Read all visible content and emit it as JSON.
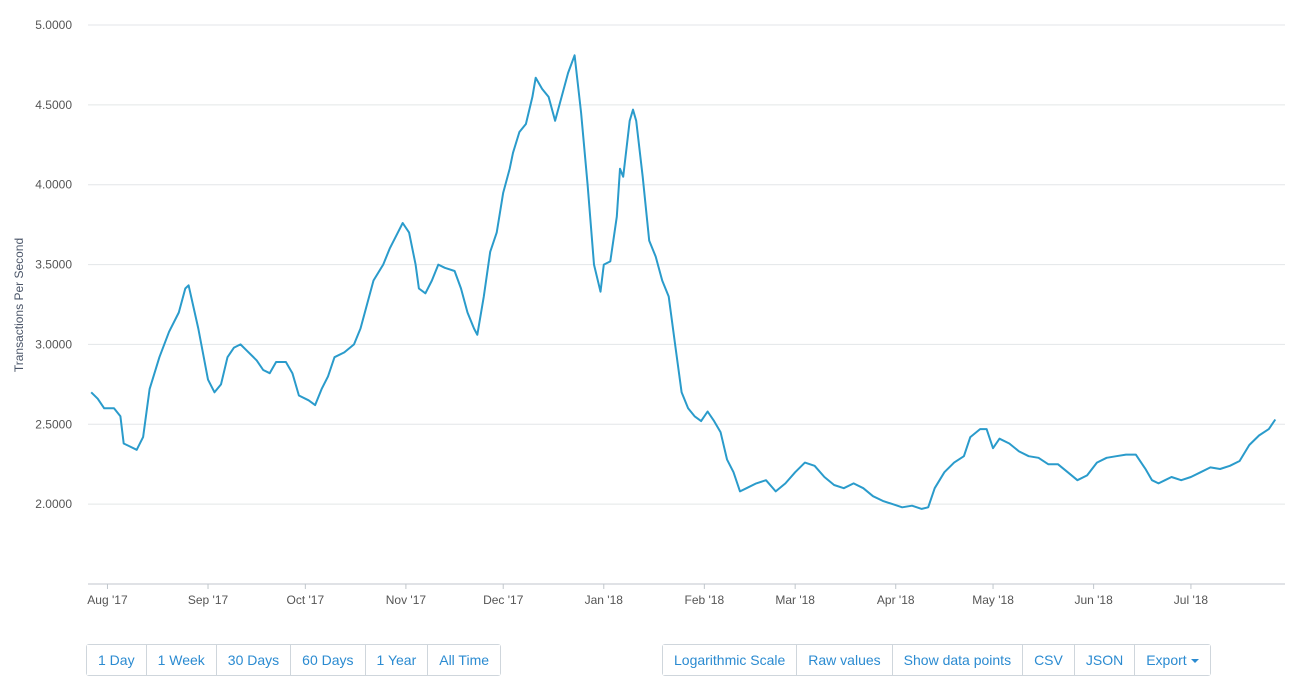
{
  "chart_data": {
    "type": "line",
    "ylabel": "Transactions Per Second",
    "ylim": [
      1.5,
      5.0
    ],
    "yticks": [
      "2.0000",
      "2.5000",
      "3.0000",
      "3.5000",
      "4.0000",
      "4.5000",
      "5.0000"
    ],
    "x_range": [
      "2017-07-26",
      "2018-07-30"
    ],
    "xticks": [
      {
        "label": "Aug '17",
        "date": "2017-08-01"
      },
      {
        "label": "Sep '17",
        "date": "2017-09-01"
      },
      {
        "label": "Oct '17",
        "date": "2017-10-01"
      },
      {
        "label": "Nov '17",
        "date": "2017-11-01"
      },
      {
        "label": "Dec '17",
        "date": "2017-12-01"
      },
      {
        "label": "Jan '18",
        "date": "2018-01-01"
      },
      {
        "label": "Feb '18",
        "date": "2018-02-01"
      },
      {
        "label": "Mar '18",
        "date": "2018-03-01"
      },
      {
        "label": "Apr '18",
        "date": "2018-04-01"
      },
      {
        "label": "May '18",
        "date": "2018-05-01"
      },
      {
        "label": "Jun '18",
        "date": "2018-06-01"
      },
      {
        "label": "Jul '18",
        "date": "2018-07-01"
      }
    ],
    "series_color": "#2a9bcb",
    "grid": true,
    "series": [
      {
        "points": [
          [
            "2017-07-27",
            2.7
          ],
          [
            "2017-07-29",
            2.66
          ],
          [
            "2017-07-31",
            2.6
          ],
          [
            "2017-08-03",
            2.6
          ],
          [
            "2017-08-05",
            2.55
          ],
          [
            "2017-08-06",
            2.38
          ],
          [
            "2017-08-08",
            2.36
          ],
          [
            "2017-08-10",
            2.34
          ],
          [
            "2017-08-12",
            2.42
          ],
          [
            "2017-08-14",
            2.72
          ],
          [
            "2017-08-17",
            2.92
          ],
          [
            "2017-08-20",
            3.08
          ],
          [
            "2017-08-23",
            3.2
          ],
          [
            "2017-08-25",
            3.35
          ],
          [
            "2017-08-26",
            3.37
          ],
          [
            "2017-08-29",
            3.1
          ],
          [
            "2017-09-01",
            2.78
          ],
          [
            "2017-09-03",
            2.7
          ],
          [
            "2017-09-05",
            2.75
          ],
          [
            "2017-09-07",
            2.92
          ],
          [
            "2017-09-09",
            2.98
          ],
          [
            "2017-09-11",
            3.0
          ],
          [
            "2017-09-13",
            2.96
          ],
          [
            "2017-09-16",
            2.9
          ],
          [
            "2017-09-18",
            2.84
          ],
          [
            "2017-09-20",
            2.82
          ],
          [
            "2017-09-22",
            2.89
          ],
          [
            "2017-09-25",
            2.89
          ],
          [
            "2017-09-27",
            2.82
          ],
          [
            "2017-09-29",
            2.68
          ],
          [
            "2017-10-02",
            2.65
          ],
          [
            "2017-10-04",
            2.62
          ],
          [
            "2017-10-06",
            2.72
          ],
          [
            "2017-10-08",
            2.8
          ],
          [
            "2017-10-10",
            2.92
          ],
          [
            "2017-10-13",
            2.95
          ],
          [
            "2017-10-16",
            3.0
          ],
          [
            "2017-10-18",
            3.1
          ],
          [
            "2017-10-20",
            3.25
          ],
          [
            "2017-10-22",
            3.4
          ],
          [
            "2017-10-25",
            3.5
          ],
          [
            "2017-10-27",
            3.6
          ],
          [
            "2017-10-29",
            3.68
          ],
          [
            "2017-10-31",
            3.76
          ],
          [
            "2017-11-02",
            3.7
          ],
          [
            "2017-11-04",
            3.5
          ],
          [
            "2017-11-05",
            3.35
          ],
          [
            "2017-11-07",
            3.32
          ],
          [
            "2017-11-09",
            3.4
          ],
          [
            "2017-11-11",
            3.5
          ],
          [
            "2017-11-13",
            3.48
          ],
          [
            "2017-11-16",
            3.46
          ],
          [
            "2017-11-18",
            3.35
          ],
          [
            "2017-11-20",
            3.2
          ],
          [
            "2017-11-22",
            3.1
          ],
          [
            "2017-11-23",
            3.06
          ],
          [
            "2017-11-25",
            3.3
          ],
          [
            "2017-11-27",
            3.58
          ],
          [
            "2017-11-29",
            3.7
          ],
          [
            "2017-12-01",
            3.95
          ],
          [
            "2017-12-03",
            4.1
          ],
          [
            "2017-12-04",
            4.2
          ],
          [
            "2017-12-06",
            4.33
          ],
          [
            "2017-12-08",
            4.38
          ],
          [
            "2017-12-10",
            4.55
          ],
          [
            "2017-12-11",
            4.67
          ],
          [
            "2017-12-13",
            4.6
          ],
          [
            "2017-12-15",
            4.55
          ],
          [
            "2017-12-17",
            4.4
          ],
          [
            "2017-12-19",
            4.55
          ],
          [
            "2017-12-21",
            4.7
          ],
          [
            "2017-12-23",
            4.81
          ],
          [
            "2017-12-25",
            4.45
          ],
          [
            "2017-12-27",
            4.0
          ],
          [
            "2017-12-29",
            3.5
          ],
          [
            "2017-12-31",
            3.33
          ],
          [
            "2018-01-01",
            3.5
          ],
          [
            "2018-01-03",
            3.52
          ],
          [
            "2018-01-05",
            3.8
          ],
          [
            "2018-01-06",
            4.1
          ],
          [
            "2018-01-07",
            4.05
          ],
          [
            "2018-01-09",
            4.4
          ],
          [
            "2018-01-10",
            4.47
          ],
          [
            "2018-01-11",
            4.4
          ],
          [
            "2018-01-13",
            4.05
          ],
          [
            "2018-01-15",
            3.65
          ],
          [
            "2018-01-17",
            3.55
          ],
          [
            "2018-01-19",
            3.4
          ],
          [
            "2018-01-21",
            3.3
          ],
          [
            "2018-01-23",
            3.0
          ],
          [
            "2018-01-25",
            2.7
          ],
          [
            "2018-01-27",
            2.6
          ],
          [
            "2018-01-29",
            2.55
          ],
          [
            "2018-01-31",
            2.52
          ],
          [
            "2018-02-02",
            2.58
          ],
          [
            "2018-02-04",
            2.52
          ],
          [
            "2018-02-06",
            2.45
          ],
          [
            "2018-02-08",
            2.28
          ],
          [
            "2018-02-10",
            2.2
          ],
          [
            "2018-02-12",
            2.08
          ],
          [
            "2018-02-14",
            2.1
          ],
          [
            "2018-02-17",
            2.13
          ],
          [
            "2018-02-20",
            2.15
          ],
          [
            "2018-02-23",
            2.08
          ],
          [
            "2018-02-26",
            2.13
          ],
          [
            "2018-03-01",
            2.2
          ],
          [
            "2018-03-04",
            2.26
          ],
          [
            "2018-03-07",
            2.24
          ],
          [
            "2018-03-10",
            2.17
          ],
          [
            "2018-03-13",
            2.12
          ],
          [
            "2018-03-16",
            2.1
          ],
          [
            "2018-03-19",
            2.13
          ],
          [
            "2018-03-22",
            2.1
          ],
          [
            "2018-03-25",
            2.05
          ],
          [
            "2018-03-28",
            2.02
          ],
          [
            "2018-03-31",
            2.0
          ],
          [
            "2018-04-03",
            1.98
          ],
          [
            "2018-04-06",
            1.99
          ],
          [
            "2018-04-09",
            1.97
          ],
          [
            "2018-04-11",
            1.98
          ],
          [
            "2018-04-13",
            2.1
          ],
          [
            "2018-04-16",
            2.2
          ],
          [
            "2018-04-19",
            2.26
          ],
          [
            "2018-04-22",
            2.3
          ],
          [
            "2018-04-24",
            2.42
          ],
          [
            "2018-04-27",
            2.47
          ],
          [
            "2018-04-29",
            2.47
          ],
          [
            "2018-05-01",
            2.35
          ],
          [
            "2018-05-03",
            2.41
          ],
          [
            "2018-05-06",
            2.38
          ],
          [
            "2018-05-09",
            2.33
          ],
          [
            "2018-05-12",
            2.3
          ],
          [
            "2018-05-15",
            2.29
          ],
          [
            "2018-05-18",
            2.25
          ],
          [
            "2018-05-21",
            2.25
          ],
          [
            "2018-05-24",
            2.2
          ],
          [
            "2018-05-27",
            2.15
          ],
          [
            "2018-05-30",
            2.18
          ],
          [
            "2018-06-02",
            2.26
          ],
          [
            "2018-06-05",
            2.29
          ],
          [
            "2018-06-08",
            2.3
          ],
          [
            "2018-06-11",
            2.31
          ],
          [
            "2018-06-14",
            2.31
          ],
          [
            "2018-06-17",
            2.22
          ],
          [
            "2018-06-19",
            2.15
          ],
          [
            "2018-06-21",
            2.13
          ],
          [
            "2018-06-23",
            2.15
          ],
          [
            "2018-06-25",
            2.17
          ],
          [
            "2018-06-28",
            2.15
          ],
          [
            "2018-07-01",
            2.17
          ],
          [
            "2018-07-04",
            2.2
          ],
          [
            "2018-07-07",
            2.23
          ],
          [
            "2018-07-10",
            2.22
          ],
          [
            "2018-07-13",
            2.24
          ],
          [
            "2018-07-16",
            2.27
          ],
          [
            "2018-07-19",
            2.37
          ],
          [
            "2018-07-22",
            2.43
          ],
          [
            "2018-07-25",
            2.47
          ],
          [
            "2018-07-27",
            2.53
          ]
        ]
      }
    ]
  },
  "controls": {
    "range_buttons": [
      "1 Day",
      "1 Week",
      "30 Days",
      "60 Days",
      "1 Year",
      "All Time"
    ],
    "option_buttons": [
      "Logarithmic Scale",
      "Raw values",
      "Show data points",
      "CSV",
      "JSON"
    ],
    "export_label": "Export"
  }
}
